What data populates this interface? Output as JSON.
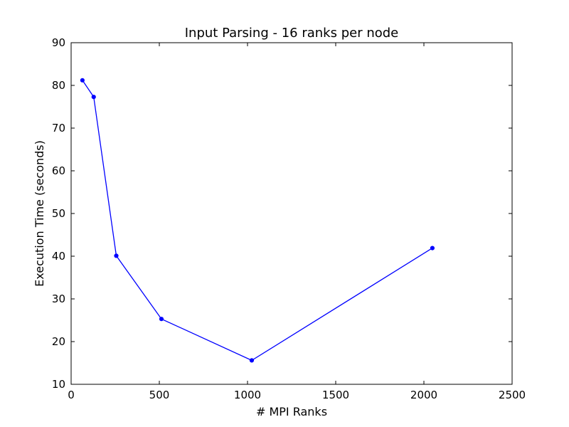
{
  "chart_data": {
    "type": "line",
    "title": "Input Parsing - 16 ranks per node",
    "xlabel": "# MPI Ranks",
    "ylabel": "Execution Time (seconds)",
    "xlim": [
      0,
      2500
    ],
    "ylim": [
      10,
      90
    ],
    "xticks": [
      "0",
      "500",
      "1000",
      "1500",
      "2000",
      "2500"
    ],
    "yticks": [
      "10",
      "20",
      "30",
      "40",
      "50",
      "60",
      "70",
      "80",
      "90"
    ],
    "grid": false,
    "legend": "none",
    "series": [
      {
        "color": "#0000ff",
        "marker": "dot",
        "x": [
          64,
          128,
          256,
          512,
          1024,
          2048
        ],
        "y": [
          81.2,
          77.3,
          40.1,
          25.3,
          15.6,
          41.9
        ]
      }
    ]
  }
}
